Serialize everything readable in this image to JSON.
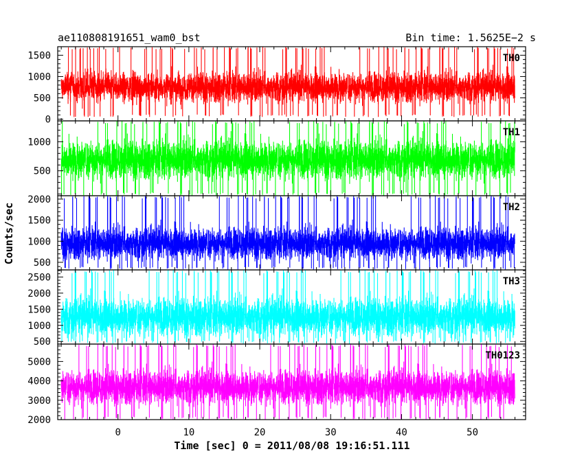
{
  "header": {
    "left_title": "ae110808191651_wam0_bst",
    "right_title": "Bin time: 1.5625E−2 s"
  },
  "chart_data": {
    "type": "line",
    "x": {
      "start": -8,
      "end": 56,
      "step": 0.015625
    },
    "xlim": [
      -8.5,
      57.5
    ],
    "xticks": [
      0,
      10,
      20,
      30,
      40,
      50
    ],
    "xlabel": "Time [sec] 0 = 2011/08/08 19:16:51.111",
    "ylabel": "Counts/sec",
    "grid": false,
    "panels": [
      {
        "name": "TH0",
        "color": "#ff0000",
        "ylim": [
          -40,
          1700
        ],
        "yticks": [
          0,
          500,
          1000,
          1500
        ],
        "mean": 760,
        "spread": 600,
        "min": 50,
        "max": 1700
      },
      {
        "name": "TH1",
        "color": "#00ff00",
        "ylim": [
          70,
          1360
        ],
        "yticks": [
          500,
          1000
        ],
        "mean": 700,
        "spread": 560,
        "min": 70,
        "max": 1360
      },
      {
        "name": "TH2",
        "color": "#0000ff",
        "ylim": [
          320,
          2080
        ],
        "yticks": [
          500,
          1000,
          1500,
          2000
        ],
        "mean": 960,
        "spread": 640,
        "min": 330,
        "max": 2080
      },
      {
        "name": "TH3",
        "color": "#00ffff",
        "ylim": [
          420,
          2720
        ],
        "yticks": [
          500,
          1000,
          1500,
          2000,
          2500
        ],
        "mean": 1280,
        "spread": 1000,
        "min": 430,
        "max": 2720
      },
      {
        "name": "TH0123",
        "color": "#ff00ff",
        "ylim": [
          2000,
          5900
        ],
        "yticks": [
          2000,
          3000,
          4000,
          5000
        ],
        "mean": 3700,
        "spread": 1500,
        "min": 2000,
        "max": 5900
      }
    ]
  }
}
